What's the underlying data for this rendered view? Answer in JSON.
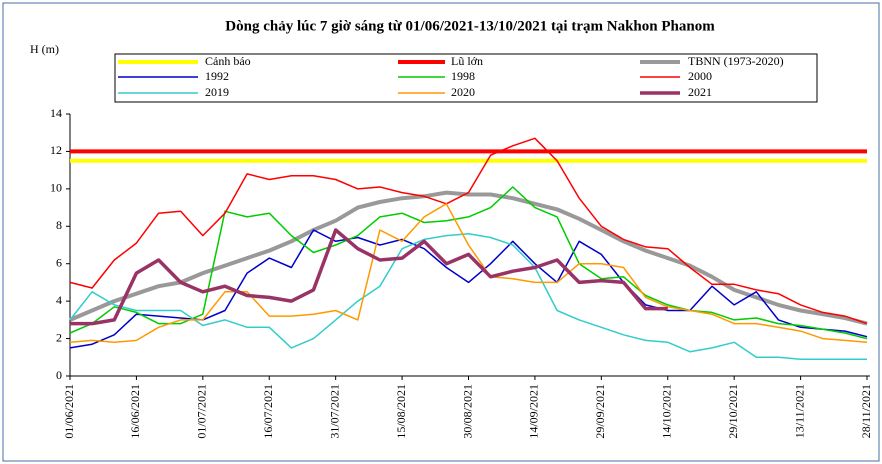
{
  "chart_data": {
    "type": "line",
    "title": "Dòng chảy lúc 7 giờ sáng từ 01/06/2021-13/10/2021 tại trạm Nakhon Phanom",
    "y_label": "H (m)",
    "x": [
      "01/06/2021",
      "06/06/2021",
      "11/06/2021",
      "16/06/2021",
      "21/06/2021",
      "26/06/2021",
      "01/07/2021",
      "06/07/2021",
      "11/07/2021",
      "16/07/2021",
      "21/07/2021",
      "26/07/2021",
      "31/07/2021",
      "05/08/2021",
      "10/08/2021",
      "15/08/2021",
      "20/08/2021",
      "25/08/2021",
      "30/08/2021",
      "04/09/2021",
      "09/09/2021",
      "14/09/2021",
      "19/09/2021",
      "24/09/2021",
      "29/09/2021",
      "04/10/2021",
      "09/10/2021",
      "14/10/2021",
      "19/10/2021",
      "24/10/2021",
      "29/10/2021",
      "03/11/2021",
      "08/11/2021",
      "13/11/2021",
      "18/11/2021",
      "23/11/2021",
      "28/11/2021"
    ],
    "xlim": [
      "01/06/2021",
      "28/11/2021"
    ],
    "xticks": [
      "01/06/2021",
      "16/06/2021",
      "01/07/2021",
      "16/07/2021",
      "31/07/2021",
      "15/08/2021",
      "30/08/2021",
      "14/09/2021",
      "29/09/2021",
      "14/10/2021",
      "29/10/2021",
      "13/11/2021",
      "28/11/2021"
    ],
    "ylim": [
      0,
      14
    ],
    "yticks": [
      0,
      2,
      4,
      6,
      8,
      10,
      12,
      14
    ],
    "grid": false,
    "series": [
      {
        "name": "Cảnh báo",
        "color": "#ffff00",
        "values": [
          11.5,
          11.5,
          11.5,
          11.5,
          11.5,
          11.5,
          11.5,
          11.5,
          11.5,
          11.5,
          11.5,
          11.5,
          11.5,
          11.5,
          11.5,
          11.5,
          11.5,
          11.5,
          11.5,
          11.5,
          11.5,
          11.5,
          11.5,
          11.5,
          11.5,
          11.5,
          11.5,
          11.5,
          11.5,
          11.5,
          11.5,
          11.5,
          11.5,
          11.5,
          11.5,
          11.5,
          11.5
        ]
      },
      {
        "name": "Lũ lớn",
        "color": "#ff0000",
        "values": [
          12,
          12,
          12,
          12,
          12,
          12,
          12,
          12,
          12,
          12,
          12,
          12,
          12,
          12,
          12,
          12,
          12,
          12,
          12,
          12,
          12,
          12,
          12,
          12,
          12,
          12,
          12,
          12,
          12,
          12,
          12,
          12,
          12,
          12,
          12,
          12,
          12
        ]
      },
      {
        "name": "TBNN (1973-2020)",
        "color": "#999999",
        "values": [
          3.0,
          3.5,
          4.0,
          4.4,
          4.8,
          5.0,
          5.5,
          5.9,
          6.3,
          6.7,
          7.2,
          7.8,
          8.3,
          9.0,
          9.3,
          9.5,
          9.6,
          9.8,
          9.7,
          9.7,
          9.5,
          9.2,
          8.9,
          8.4,
          7.8,
          7.2,
          6.7,
          6.3,
          5.9,
          5.3,
          4.6,
          4.2,
          3.8,
          3.5,
          3.3,
          3.1,
          2.8
        ]
      },
      {
        "name": "1992",
        "color": "#0000cc",
        "values": [
          1.5,
          1.7,
          2.2,
          3.3,
          3.2,
          3.1,
          3.0,
          3.5,
          5.5,
          6.3,
          5.8,
          7.8,
          7.2,
          7.4,
          7.0,
          7.3,
          6.8,
          5.8,
          5.0,
          6.0,
          7.2,
          6.0,
          5.0,
          7.2,
          6.5,
          5.0,
          3.8,
          3.5,
          3.5,
          4.8,
          3.8,
          4.5,
          3.0,
          2.6,
          2.5,
          2.4,
          2.1
        ]
      },
      {
        "name": "1998",
        "color": "#00cc00",
        "values": [
          2.3,
          2.8,
          3.7,
          3.4,
          2.8,
          2.8,
          3.3,
          8.8,
          8.5,
          8.7,
          7.5,
          6.6,
          7.0,
          7.5,
          8.5,
          8.7,
          8.2,
          8.3,
          8.5,
          9.0,
          10.1,
          9.0,
          8.5,
          6.0,
          5.2,
          5.3,
          4.3,
          3.8,
          3.5,
          3.4,
          3.0,
          3.1,
          2.8,
          2.7,
          2.5,
          2.3,
          2.0
        ]
      },
      {
        "name": "2000",
        "color": "#ff0000",
        "values": [
          5.0,
          4.7,
          6.2,
          7.1,
          8.7,
          8.8,
          7.5,
          8.7,
          10.8,
          10.5,
          10.7,
          10.7,
          10.5,
          10.0,
          10.1,
          9.8,
          9.6,
          9.2,
          9.8,
          11.8,
          12.3,
          12.7,
          11.5,
          9.5,
          8.0,
          7.3,
          6.9,
          6.8,
          5.8,
          4.9,
          4.9,
          4.6,
          4.4,
          3.8,
          3.4,
          3.2,
          2.8
        ]
      },
      {
        "name": "2019",
        "color": "#33cccc",
        "values": [
          3.0,
          4.5,
          3.8,
          3.5,
          3.5,
          3.5,
          2.7,
          3.0,
          2.6,
          2.6,
          1.5,
          2.0,
          3.0,
          4.0,
          4.8,
          6.8,
          7.3,
          7.5,
          7.6,
          7.4,
          7.0,
          5.8,
          3.5,
          3.0,
          2.6,
          2.2,
          1.9,
          1.8,
          1.3,
          1.5,
          1.8,
          1.0,
          1.0,
          0.9,
          0.9,
          0.9,
          0.9
        ]
      },
      {
        "name": "2020",
        "color": "#ff9900",
        "values": [
          1.8,
          1.9,
          1.8,
          1.9,
          2.6,
          3.0,
          3.0,
          4.5,
          4.5,
          3.2,
          3.2,
          3.3,
          3.5,
          3.0,
          7.8,
          7.2,
          8.5,
          9.2,
          7.0,
          5.3,
          5.2,
          5.0,
          5.0,
          6.0,
          6.0,
          5.8,
          4.2,
          3.7,
          3.5,
          3.3,
          2.8,
          2.8,
          2.6,
          2.4,
          2.0,
          1.9,
          1.8
        ]
      },
      {
        "name": "2021",
        "color": "#993366",
        "values": [
          2.8,
          2.8,
          3.0,
          5.5,
          6.2,
          5.0,
          4.5,
          4.8,
          4.3,
          4.2,
          4.0,
          4.6,
          7.8,
          6.8,
          6.2,
          6.3,
          7.2,
          6.0,
          6.5,
          5.3,
          5.6,
          5.8,
          6.2,
          5.0,
          5.1,
          5.0,
          3.6,
          3.6,
          null,
          null,
          null,
          null,
          null,
          null,
          null,
          null,
          null
        ]
      }
    ]
  }
}
